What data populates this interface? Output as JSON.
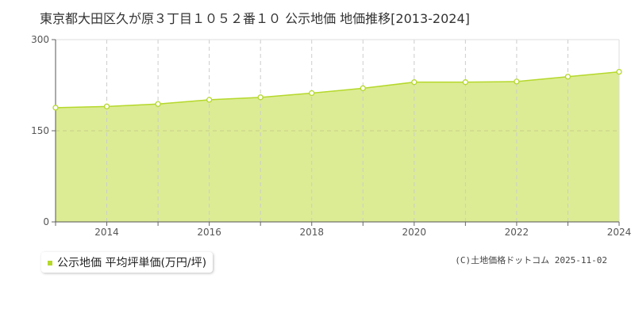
{
  "title": "東京都大田区久が原３丁目１０５２番１０ 公示地価 地価推移[2013-2024]",
  "credit": "(C)土地価格ドットコム 2025-11-02",
  "colors": {
    "fill": "#dcec94",
    "line": "#b5d82b",
    "grid": "#cccccc"
  },
  "chart_data": {
    "type": "area",
    "title": "東京都大田区久が原３丁目１０５２番１０ 公示地価 地価推移[2013-2024]",
    "x": [
      2013,
      2014,
      2015,
      2016,
      2017,
      2018,
      2019,
      2020,
      2021,
      2022,
      2023,
      2024
    ],
    "series": [
      {
        "name": "公示地価 平均坪単価(万円/坪)",
        "values": [
          188,
          190,
          194,
          201,
          205,
          212,
          220,
          230,
          230,
          231,
          239,
          247
        ]
      }
    ],
    "xlim": [
      2013,
      2024
    ],
    "ylim": [
      0,
      300
    ],
    "yticks": [
      "0",
      "150",
      "300"
    ],
    "xticks": [
      "2014",
      "2016",
      "2018",
      "2020",
      "2022",
      "2024"
    ],
    "legend": "bottom-left",
    "grid": true
  }
}
